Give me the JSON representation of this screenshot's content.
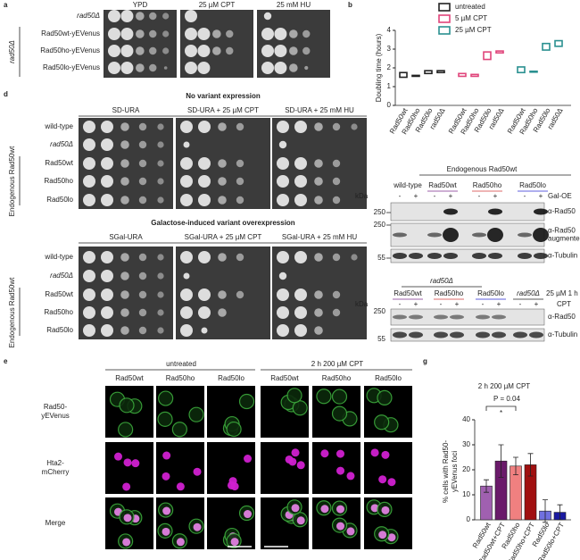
{
  "panel_labels": [
    "a",
    "b",
    "c",
    "d",
    "e",
    "f",
    "g"
  ],
  "spot_assay_a": {
    "columns": [
      "YPD",
      "25 µM CPT",
      "25 mM HU"
    ],
    "group_label": "rad50Δ",
    "rows": [
      {
        "text": "rad50Δ",
        "color": "#222222"
      },
      {
        "text": "Rad50wt-yEVenus",
        "color": "#7b2d8e"
      },
      {
        "text": "Rad50ho-yEVenus",
        "color": "#d23a3a"
      },
      {
        "text": "Rad50lo-yEVenus",
        "color": "#2a2ad0"
      }
    ]
  },
  "spot_assay_d": {
    "group_label": "Endogenous Rad50wt",
    "rows": [
      {
        "text": "wild-type",
        "color": "#222222"
      },
      {
        "text": "rad50Δ",
        "color": "#222222"
      },
      {
        "text": "Rad50wt",
        "color": "#7b2d8e"
      },
      {
        "text": "Rad50ho",
        "color": "#d23a3a"
      },
      {
        "text": "Rad50lo",
        "color": "#2a2ad0"
      }
    ],
    "sections": [
      {
        "title": "No variant expression",
        "columns": [
          "SD-URA",
          "SD-URA + 25 µM CPT",
          "SD-URA + 25 mM HU"
        ]
      },
      {
        "title": "Galactose-induced variant overexpression",
        "columns": [
          "SGal-URA",
          "SGal-URA + 25 µM CPT",
          "SGal-URA + 25 mM HU"
        ]
      }
    ]
  },
  "blot_c": {
    "header": "Endogenous Rad50wt",
    "lanes": [
      {
        "text": "wild-type",
        "color": "#222222"
      },
      {
        "text": "Rad50wt",
        "color": "#7b2d8e"
      },
      {
        "text": "Rad50ho",
        "color": "#d23a3a"
      },
      {
        "text": "Rad50lo",
        "color": "#2a2ad0"
      }
    ],
    "kda": "kDa",
    "signs": [
      "-",
      "+"
    ],
    "treatment": "Gal-OE",
    "markers": [
      "250",
      "250",
      "55"
    ],
    "antibodies": [
      [
        "α-Rad50"
      ],
      [
        "α-Rad50",
        "augmented"
      ],
      [
        "α-Tubulin"
      ]
    ]
  },
  "blot_f": {
    "header": "rad50Δ",
    "lanes": [
      {
        "text": "Rad50wt",
        "color": "#7b2d8e"
      },
      {
        "text": "Rad50ho",
        "color": "#d23a3a"
      },
      {
        "text": "Rad50lo",
        "color": "#2a2ad0"
      },
      {
        "text": "rad50Δ",
        "color": "#222222"
      }
    ],
    "kda": "kDa",
    "signs": [
      "-",
      "+"
    ],
    "treatment": [
      "25 µM 1 h",
      "CPT"
    ],
    "markers": [
      "250",
      "55"
    ],
    "antibodies": [
      "α-Rad50",
      "α-Tubulin"
    ]
  },
  "microscopy": {
    "conditions": [
      "untreated",
      "2 h 200 µM CPT"
    ],
    "strains": [
      "Rad50wt",
      "Rad50ho",
      "Rad50lo"
    ],
    "channels": [
      {
        "lines": [
          "Rad50-",
          "yEVenus"
        ],
        "color": "#2e9a2e"
      },
      {
        "lines": [
          "Hta2-",
          "mCherry"
        ],
        "color": "#d020d0"
      },
      {
        "lines": [
          "Merge"
        ],
        "color": "#222222"
      }
    ]
  },
  "chart_data": [
    {
      "type": "floating-bar",
      "y_label": "Doubling time (hours)",
      "categories": [
        "Rad50wt",
        "Rad50ho",
        "Rad50lo",
        "rad50Δ",
        "Rad50wt",
        "Rad50ho",
        "Rad50lo",
        "rad50Δ",
        "Rad50wt",
        "Rad50ho",
        "Rad50lo",
        "rad50Δ"
      ],
      "series": [
        {
          "name": "untreated",
          "color": "#222222",
          "low": [
            1.5,
            1.55,
            1.7,
            1.75,
            null,
            null,
            null,
            null,
            null,
            null,
            null,
            null
          ],
          "high": [
            1.75,
            1.6,
            1.85,
            1.85,
            null,
            null,
            null,
            null,
            null,
            null,
            null,
            null
          ]
        },
        {
          "name": "5 µM CPT",
          "color": "#e0457b",
          "low": [
            null,
            null,
            null,
            null,
            1.55,
            1.55,
            2.45,
            2.8,
            null,
            null,
            null,
            null
          ],
          "high": [
            null,
            null,
            null,
            null,
            1.7,
            1.65,
            2.85,
            2.9,
            null,
            null,
            null,
            null
          ]
        },
        {
          "name": "25 µM CPT",
          "color": "#2a9090",
          "low": [
            null,
            null,
            null,
            null,
            null,
            null,
            null,
            null,
            1.75,
            1.78,
            2.95,
            3.15
          ],
          "high": [
            null,
            null,
            null,
            null,
            null,
            null,
            null,
            null,
            2.05,
            1.82,
            3.3,
            3.45
          ]
        }
      ],
      "ylim": [
        0,
        4
      ],
      "yticks": [
        0,
        1,
        2,
        3,
        4
      ],
      "legend": "top-right"
    },
    {
      "type": "bar",
      "title": "2 h 200 µM CPT",
      "annotation": "P = 0.04",
      "significance": "*",
      "y_label": [
        "% cells with Rad50-",
        "yEVenus foci"
      ],
      "categories": [
        "Rad50wt",
        "Rad50wt+CPT",
        "Rad50ho",
        "Rad50ho+CPT",
        "Rad50lo",
        "Rad50lo+CPT"
      ],
      "values": [
        13.5,
        23.5,
        21.5,
        22,
        3.5,
        3
      ],
      "errors": [
        2.5,
        6.5,
        3.5,
        4.5,
        4.5,
        3
      ],
      "colors": [
        "#a060b0",
        "#6a1a6a",
        "#f08080",
        "#a01010",
        "#7070e0",
        "#1a1aa0"
      ],
      "ylim": [
        0,
        40
      ],
      "yticks": [
        0,
        10,
        20,
        30,
        40
      ]
    }
  ]
}
